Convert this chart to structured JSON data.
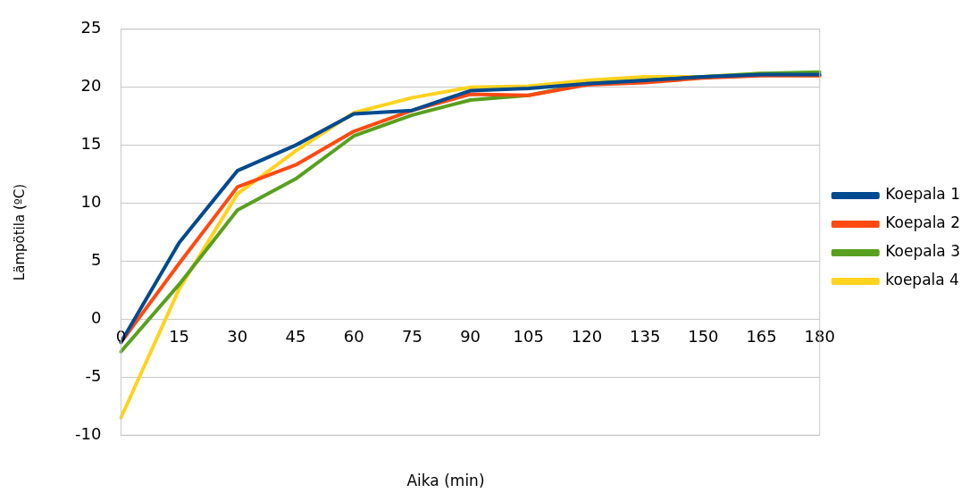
{
  "chart_data": {
    "type": "line",
    "xlabel": "Aika (min)",
    "ylabel": "Lämpötila (ºC)",
    "categories": [
      "0",
      "15",
      "30",
      "45",
      "60",
      "75",
      "90",
      "105",
      "120",
      "135",
      "150",
      "165",
      "180"
    ],
    "series": [
      {
        "name": "Koepala 1",
        "color": "#004a8f",
        "values": [
          -2,
          6.6,
          12.8,
          15,
          17.7,
          18,
          19.7,
          19.9,
          20.3,
          20.6,
          20.9,
          21.1,
          21.1
        ]
      },
      {
        "name": "Koepala 2",
        "color": "#ff4a12",
        "values": [
          -2,
          4.8,
          11.4,
          13.3,
          16.2,
          18,
          19.4,
          19.3,
          20.2,
          20.4,
          20.8,
          21,
          21
        ]
      },
      {
        "name": "Koepala 3",
        "color": "#58a01e",
        "values": [
          -2.8,
          3,
          9.4,
          12.1,
          15.8,
          17.6,
          18.9,
          19.3,
          20.3,
          20.6,
          20.9,
          21.2,
          21.3
        ]
      },
      {
        "name": "koepala 4",
        "color": "#ffd21e",
        "values": [
          -8.5,
          2.6,
          10.8,
          14.5,
          17.8,
          19.1,
          20,
          20.1,
          20.6,
          20.9,
          20.9,
          21.2,
          21
        ]
      }
    ],
    "ylim": [
      -10,
      25
    ],
    "yticks": [
      -10,
      -5,
      0,
      5,
      10,
      15,
      20,
      25
    ],
    "grid": "y",
    "legend": "right",
    "marker": "none",
    "line_style": "solid"
  }
}
